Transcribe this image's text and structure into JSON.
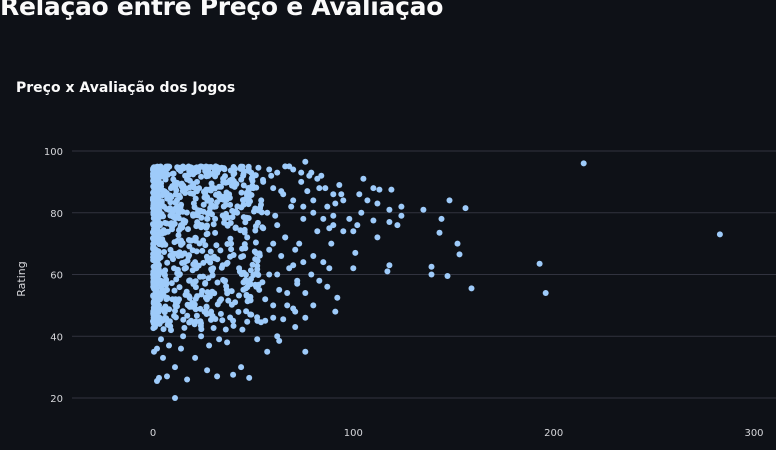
{
  "page": {
    "heading": "Relação entre Preço e Avaliação"
  },
  "colors": {
    "background": "#0e1117",
    "point": "#9ecbfa",
    "grid": "#31333f",
    "text": "#fafafa"
  },
  "chart_data": {
    "type": "scatter",
    "title": "Preço x Avaliação dos Jogos",
    "xlabel": "",
    "ylabel": "Rating",
    "xlim": [
      -15,
      310
    ],
    "ylim": [
      17,
      102
    ],
    "x_ticks": [
      "0",
      "100",
      "200",
      "300"
    ],
    "x_tick_values": [
      0,
      100,
      200,
      300
    ],
    "y_ticks": [
      "20",
      "40",
      "60",
      "80",
      "100"
    ],
    "y_tick_values": [
      20,
      40,
      60,
      80,
      100
    ],
    "grid": true,
    "legend": "none",
    "series": [
      {
        "points": [
          [
            215,
            96
          ],
          [
            283,
            73
          ],
          [
            193,
            63.5
          ],
          [
            196,
            54
          ],
          [
            159,
            55.5
          ],
          [
            153,
            66.5
          ],
          [
            156,
            81.5
          ],
          [
            148,
            84
          ],
          [
            152,
            70
          ],
          [
            144,
            78
          ],
          [
            143,
            73.5
          ],
          [
            139,
            62.5
          ],
          [
            139,
            60
          ],
          [
            147,
            59.5
          ],
          [
            135,
            81
          ],
          [
            124,
            79
          ],
          [
            124,
            82
          ],
          [
            122,
            76
          ],
          [
            119,
            87.5
          ],
          [
            118,
            81
          ],
          [
            118,
            77
          ],
          [
            118,
            63
          ],
          [
            117,
            61
          ],
          [
            113,
            87.5
          ],
          [
            112,
            83
          ],
          [
            110,
            88
          ],
          [
            110,
            77.5
          ],
          [
            112,
            72
          ],
          [
            107,
            84
          ],
          [
            105,
            91
          ],
          [
            104,
            80
          ],
          [
            103,
            86
          ],
          [
            102,
            76
          ],
          [
            101,
            67
          ],
          [
            100,
            62
          ],
          [
            100,
            74
          ],
          [
            94,
            86
          ],
          [
            93,
            89
          ],
          [
            92,
            52.5
          ],
          [
            91,
            48
          ],
          [
            91,
            83
          ],
          [
            90,
            79
          ],
          [
            89,
            70
          ],
          [
            88,
            75
          ],
          [
            88,
            62
          ],
          [
            87,
            82
          ],
          [
            85,
            64
          ],
          [
            84,
            92
          ],
          [
            83,
            88
          ],
          [
            82,
            74
          ],
          [
            80,
            84
          ],
          [
            80,
            66
          ],
          [
            79,
            93
          ],
          [
            77,
            87
          ],
          [
            76,
            96.5
          ],
          [
            76,
            46
          ],
          [
            76,
            35
          ],
          [
            75,
            78
          ],
          [
            74,
            90
          ],
          [
            73,
            70
          ],
          [
            72,
            57
          ],
          [
            71,
            43
          ],
          [
            70,
            49
          ],
          [
            70,
            63
          ],
          [
            69,
            82
          ],
          [
            68,
            95
          ],
          [
            67,
            54
          ],
          [
            66,
            72
          ],
          [
            65,
            45.5
          ],
          [
            64,
            87
          ],
          [
            63,
            38.5
          ],
          [
            62,
            40
          ],
          [
            62,
            60
          ],
          [
            61,
            79
          ],
          [
            60,
            50
          ],
          [
            59,
            92
          ],
          [
            58,
            68
          ],
          [
            57,
            35
          ],
          [
            56,
            45
          ],
          [
            55,
            75
          ],
          [
            54,
            84
          ],
          [
            53,
            55
          ],
          [
            52,
            39
          ],
          [
            51,
            65
          ],
          [
            50,
            88
          ],
          [
            49,
            47
          ],
          [
            48,
            26.5
          ],
          [
            47,
            72
          ],
          [
            46,
            58
          ],
          [
            45,
            92
          ],
          [
            44,
            30
          ],
          [
            43,
            62
          ],
          [
            42,
            80
          ],
          [
            41,
            51
          ],
          [
            40,
            45
          ],
          [
            40,
            27.5
          ],
          [
            39,
            70
          ],
          [
            38,
            86
          ],
          [
            37,
            38
          ],
          [
            36,
            58
          ],
          [
            35,
            91
          ],
          [
            34,
            52
          ],
          [
            33,
            39
          ],
          [
            32,
            27
          ],
          [
            31,
            78
          ],
          [
            30,
            62
          ],
          [
            29,
            48
          ],
          [
            28,
            37
          ],
          [
            27,
            85
          ],
          [
            27,
            29
          ],
          [
            26,
            57
          ],
          [
            25,
            71
          ],
          [
            24,
            40
          ],
          [
            23,
            88
          ],
          [
            22,
            53
          ],
          [
            21,
            64
          ],
          [
            21,
            33
          ],
          [
            20,
            79
          ],
          [
            19,
            45
          ],
          [
            18,
            58
          ],
          [
            17,
            26
          ],
          [
            16,
            92
          ],
          [
            15,
            40
          ],
          [
            14,
            36
          ],
          [
            14,
            71
          ],
          [
            13,
            52
          ],
          [
            12,
            84
          ],
          [
            11,
            30
          ],
          [
            11,
            20
          ],
          [
            10,
            65
          ],
          [
            9,
            42
          ],
          [
            9,
            88
          ],
          [
            8,
            37
          ],
          [
            7,
            27
          ],
          [
            7,
            55
          ],
          [
            6,
            46
          ],
          [
            5,
            93
          ],
          [
            5,
            33
          ],
          [
            4,
            39
          ],
          [
            3,
            26.5
          ],
          [
            3,
            50
          ],
          [
            2,
            36
          ],
          [
            2,
            25.5
          ],
          [
            1,
            43
          ],
          [
            1,
            60
          ],
          [
            0.5,
            35
          ],
          [
            0.5,
            82
          ],
          [
            0.2,
            70
          ],
          [
            0.2,
            47
          ],
          [
            0.1,
            56
          ],
          [
            58,
            94
          ],
          [
            62,
            93
          ],
          [
            66,
            95
          ],
          [
            70,
            94
          ],
          [
            74,
            93
          ],
          [
            78,
            92
          ],
          [
            82,
            91
          ],
          [
            86,
            88
          ],
          [
            90,
            86
          ],
          [
            95,
            84
          ],
          [
            55,
            90
          ],
          [
            60,
            88
          ],
          [
            65,
            86
          ],
          [
            70,
            84
          ],
          [
            75,
            82
          ],
          [
            80,
            80
          ],
          [
            85,
            78
          ],
          [
            90,
            76
          ],
          [
            95,
            74
          ],
          [
            98,
            78
          ],
          [
            57,
            80
          ],
          [
            62,
            76
          ],
          [
            66,
            72
          ],
          [
            71,
            68
          ],
          [
            75,
            64
          ],
          [
            79,
            60
          ],
          [
            83,
            58
          ],
          [
            87,
            56
          ],
          [
            60,
            70
          ],
          [
            64,
            66
          ],
          [
            68,
            62
          ],
          [
            72,
            58
          ],
          [
            76,
            54
          ],
          [
            80,
            50
          ],
          [
            58,
            60
          ],
          [
            63,
            55
          ],
          [
            67,
            50
          ],
          [
            71,
            48
          ],
          [
            56,
            52
          ],
          [
            60,
            46
          ]
        ]
      }
    ]
  }
}
